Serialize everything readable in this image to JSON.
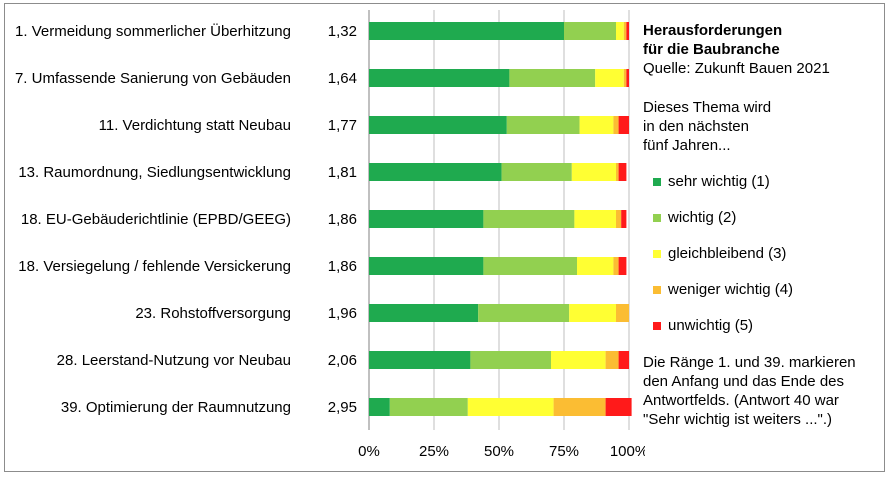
{
  "chart_data": {
    "type": "bar",
    "stacked": true,
    "orientation": "horizontal",
    "title": "Herausforderungen\nfür die Baubranche",
    "source": "Quelle: Zukunft Bauen 2021",
    "legend_title": "Dieses Thema wird\nin den nächsten\nfünf Jahren...",
    "note": "Die Ränge 1. und 39. markieren\nden Anfang und das Ende des\nAntwortfelds. (Antwort 40 war\n\"Sehr wichtig ist weiters ...\".)",
    "categories": [
      "1. Vermeidung sommerlicher Überhitzung",
      "7. Umfassende Sanierung von Gebäuden",
      "11. Verdichtung statt Neubau",
      "13. Raumordnung, Siedlungsentwicklung",
      "18. EU-Gebäuderichtlinie (EPBD/GEEG)",
      "18. Versiegelung / fehlende Versickerung",
      "23. Rohstoffversorgung",
      "28. Leerstand-Nutzung vor Neubau",
      "39. Optimierung der Raumnutzung"
    ],
    "scores": [
      "1,32",
      "1,64",
      "1,77",
      "1,81",
      "1,86",
      "1,86",
      "1,96",
      "2,06",
      "2,95"
    ],
    "series": [
      {
        "name": "sehr wichtig (1)",
        "color": "#1faa4f",
        "values": [
          75,
          54,
          53,
          51,
          44,
          44,
          42,
          39,
          8
        ]
      },
      {
        "name": "wichtig (2)",
        "color": "#92d050",
        "values": [
          20,
          33,
          28,
          27,
          35,
          36,
          35,
          31,
          30
        ]
      },
      {
        "name": "gleichbleibend (3)",
        "color": "#ffff33",
        "values": [
          3,
          11,
          13,
          17,
          16,
          14,
          18,
          21,
          33
        ]
      },
      {
        "name": "weniger wichtig (4)",
        "color": "#fbbd33",
        "values": [
          1,
          1,
          2,
          1,
          2,
          2,
          5,
          5,
          20
        ]
      },
      {
        "name": "unwichtig (5)",
        "color": "#ff1a1a",
        "values": [
          1,
          1,
          4,
          3,
          2,
          3,
          0,
          4,
          10
        ]
      }
    ],
    "xlim": [
      0,
      100
    ],
    "xticks": [
      "0%",
      "25%",
      "50%",
      "75%",
      "100%"
    ],
    "grid": true,
    "legend_position": "right"
  }
}
